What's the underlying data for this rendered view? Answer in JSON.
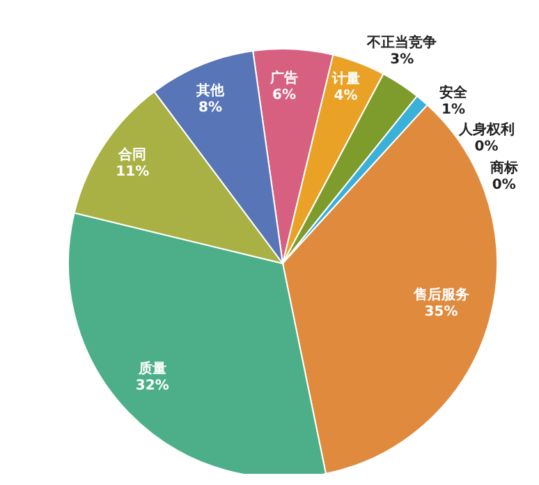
{
  "chart_data": {
    "type": "pie",
    "categories": [
      "广告",
      "计量",
      "不正当竞争",
      "安全",
      "人身权利",
      "商标",
      "售后服务",
      "质量",
      "合同",
      "其他"
    ],
    "values": [
      6,
      4,
      3,
      1,
      0,
      0,
      35,
      32,
      11,
      8
    ],
    "value_labels": [
      "6%",
      "4%",
      "3%",
      "1%",
      "0%",
      "0%",
      "35%",
      "32%",
      "11%",
      "8%"
    ],
    "colors": [
      "#d75f80",
      "#e9a126",
      "#7d9c2c",
      "#3bb0d9",
      "#8a8a8a",
      "#a0522d",
      "#df8a3d",
      "#4caf8a",
      "#a9b145",
      "#5876b7"
    ]
  }
}
